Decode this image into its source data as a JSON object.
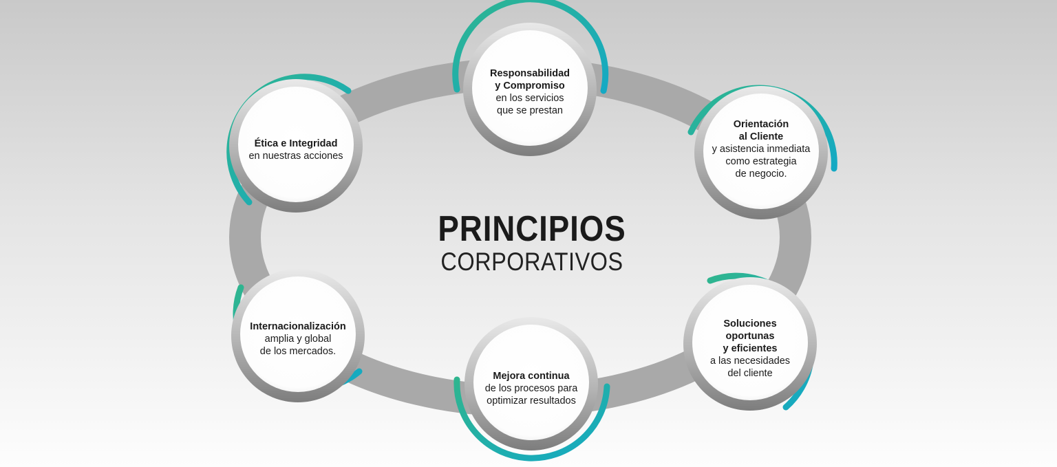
{
  "title": {
    "main": "PRINCIPIOS",
    "sub": "CORPORATIVOS"
  },
  "principles": [
    {
      "heading": [
        "Responsabilidad",
        "y Compromiso"
      ],
      "body": [
        "en los servicios",
        "que se prestan"
      ]
    },
    {
      "heading": [
        "Orientación",
        "al Cliente"
      ],
      "body": [
        "y asistencia inmediata",
        "como estrategia",
        "de negocio."
      ]
    },
    {
      "heading": [
        "Soluciones",
        "oportunas",
        "y eficientes"
      ],
      "body": [
        "a las necesidades",
        "del cliente"
      ]
    },
    {
      "heading": [
        "Mejora continua"
      ],
      "body": [
        "de los procesos para",
        "optimizar resultados"
      ]
    },
    {
      "heading": [
        "Internacionalización"
      ],
      "body": [
        "amplia y global",
        "de los mercados."
      ]
    },
    {
      "heading": [
        "Ética e Integridad"
      ],
      "body": [
        "en nuestras acciones"
      ]
    }
  ],
  "colors": {
    "accent_teal": "#1bb2b6",
    "accent_green": "#2fb58f",
    "ring_gray": "#a9a9a9"
  }
}
